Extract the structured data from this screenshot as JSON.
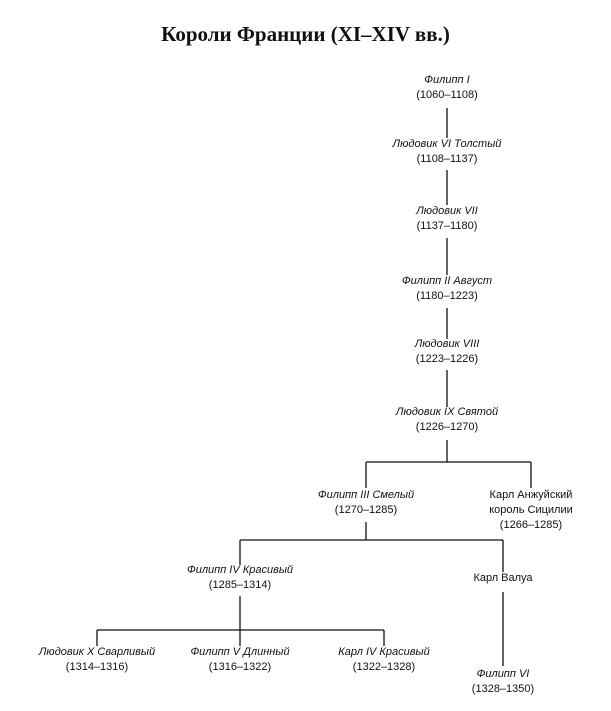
{
  "title": "Короли Франции (XI–XIV вв.)",
  "nodes": [
    {
      "name": "Филипп I",
      "dates": "(1060–1108)"
    },
    {
      "name": "Людовик VI Толстый",
      "dates": "(1108–1137)"
    },
    {
      "name": "Людовик VII",
      "dates": "(1137–1180)"
    },
    {
      "name": "Филипп II Август",
      "dates": "(1180–1223)"
    },
    {
      "name": "Людовик VIII",
      "dates": "(1223–1226)"
    },
    {
      "name": "Людовик IX Святой",
      "dates": "(1226–1270)"
    },
    {
      "name": "Филипп III Смелый",
      "dates": "(1270–1285)"
    },
    {
      "name": "Карл Анжуйский",
      "name2": "король Сицилии",
      "dates": "(1266–1285)"
    },
    {
      "name": "Филипп IV Красивый",
      "dates": "(1285–1314)"
    },
    {
      "name": "Карл Валуа"
    },
    {
      "name": "Людовик X Сварливый",
      "dates": "(1314–1316)"
    },
    {
      "name": "Филипп V Длинный",
      "dates": "(1316–1322)"
    },
    {
      "name": "Карл IV Красивый",
      "dates": "(1322–1328)"
    },
    {
      "name": "Филипп VI",
      "dates": "(1328–1350)"
    }
  ]
}
